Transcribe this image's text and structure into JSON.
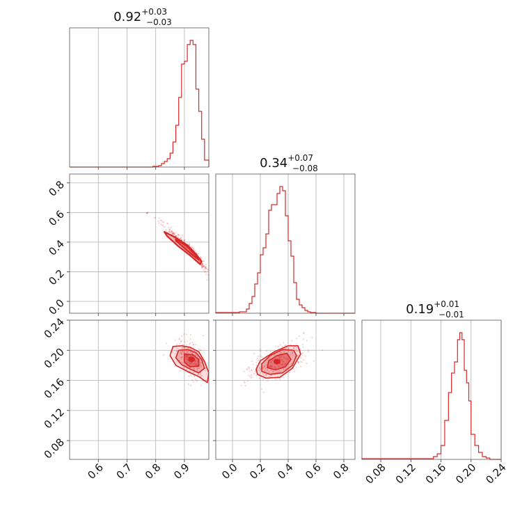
{
  "figure": {
    "type": "corner",
    "color": "#d62728"
  },
  "chart_data": [
    {
      "type": "histogram",
      "panel": "diag-0",
      "title": {
        "value": "0.92",
        "plus": "+0.03",
        "minus": "−0.03"
      },
      "xlim": [
        0.5,
        0.985
      ],
      "xticks": [
        0.6,
        0.7,
        0.8,
        0.9
      ],
      "xticklabels": [
        "0.6",
        "0.7",
        "0.8",
        "0.9"
      ],
      "bin_edges": [
        0.5,
        0.79,
        0.81,
        0.82,
        0.83,
        0.84,
        0.85,
        0.86,
        0.87,
        0.88,
        0.89,
        0.9,
        0.91,
        0.92,
        0.93,
        0.94,
        0.95,
        0.96,
        0.97,
        0.985
      ],
      "counts": [
        0,
        0.005,
        0.01,
        0.025,
        0.04,
        0.06,
        0.1,
        0.18,
        0.3,
        0.5,
        0.74,
        0.76,
        0.88,
        0.91,
        0.88,
        0.56,
        0.4,
        0.2,
        0.05
      ]
    },
    {
      "type": "histogram",
      "panel": "diag-1",
      "title": {
        "value": "0.34",
        "plus": "+0.07",
        "minus": "−0.08"
      },
      "xlim": [
        -0.12,
        0.88
      ],
      "xticks": [
        0.0,
        0.2,
        0.4,
        0.6,
        0.8
      ],
      "xticklabels": [
        "0.0",
        "0.2",
        "0.4",
        "0.6",
        "0.8"
      ],
      "bin_edges": [
        -0.12,
        0.05,
        0.1,
        0.12,
        0.14,
        0.16,
        0.18,
        0.2,
        0.22,
        0.24,
        0.26,
        0.28,
        0.3,
        0.32,
        0.34,
        0.36,
        0.38,
        0.4,
        0.42,
        0.44,
        0.46,
        0.48,
        0.5,
        0.52,
        0.54,
        0.56,
        0.6,
        0.88
      ],
      "counts": [
        0.005,
        0.01,
        0.03,
        0.07,
        0.12,
        0.21,
        0.29,
        0.42,
        0.47,
        0.57,
        0.74,
        0.78,
        0.78,
        0.86,
        0.91,
        0.88,
        0.7,
        0.52,
        0.41,
        0.22,
        0.1,
        0.06,
        0.04,
        0.02,
        0.01,
        0.005,
        0
      ]
    },
    {
      "type": "histogram",
      "panel": "diag-2",
      "title": {
        "value": "0.19",
        "plus": "+0.01",
        "minus": "−0.01"
      },
      "xlim": [
        0.055,
        0.24
      ],
      "xticks": [
        0.08,
        0.12,
        0.16,
        0.2,
        0.24
      ],
      "xticklabels": [
        "0.08",
        "0.12",
        "0.16",
        "0.20",
        "0.24"
      ],
      "bin_edges": [
        0.055,
        0.15,
        0.155,
        0.16,
        0.165,
        0.17,
        0.174,
        0.178,
        0.182,
        0.185,
        0.188,
        0.191,
        0.194,
        0.197,
        0.2,
        0.205,
        0.21,
        0.215,
        0.22,
        0.225,
        0.24
      ],
      "counts": [
        0.005,
        0.02,
        0.04,
        0.1,
        0.28,
        0.48,
        0.62,
        0.7,
        0.86,
        0.91,
        0.86,
        0.64,
        0.55,
        0.42,
        0.18,
        0.1,
        0.05,
        0.02,
        0.01,
        0
      ]
    },
    {
      "type": "scatter",
      "panel": "lower-1-0",
      "xlim": [
        0.5,
        0.985
      ],
      "ylim": [
        -0.08,
        0.86
      ],
      "xticks": [
        0.6,
        0.7,
        0.8,
        0.9
      ],
      "yticks": [
        0.0,
        0.2,
        0.4,
        0.6,
        0.8
      ],
      "yticklabels": [
        "0.0",
        "0.2",
        "0.4",
        "0.6",
        "0.8"
      ],
      "trend": {
        "x": [
          0.77,
          0.82,
          0.86,
          0.9,
          0.94,
          0.97,
          0.985
        ],
        "y": [
          0.6,
          0.53,
          0.46,
          0.39,
          0.31,
          0.23,
          0.16
        ]
      },
      "contours": [
        {
          "x": [
            0.83,
            0.87,
            0.91,
            0.94,
            0.96,
            0.955,
            0.92,
            0.88,
            0.84
          ],
          "y": [
            0.47,
            0.43,
            0.38,
            0.32,
            0.27,
            0.25,
            0.31,
            0.37,
            0.44
          ]
        },
        {
          "x": [
            0.87,
            0.91,
            0.94,
            0.95,
            0.93,
            0.9,
            0.87
          ],
          "y": [
            0.42,
            0.37,
            0.31,
            0.28,
            0.31,
            0.36,
            0.41
          ]
        }
      ]
    },
    {
      "type": "scatter",
      "panel": "lower-2-0",
      "xlim": [
        0.5,
        0.985
      ],
      "ylim": [
        0.055,
        0.24
      ],
      "xticks": [
        0.6,
        0.7,
        0.8,
        0.9
      ],
      "xticklabels": [
        "0.6",
        "0.7",
        "0.8",
        "0.9"
      ],
      "yticks": [
        0.08,
        0.12,
        0.16,
        0.2,
        0.24
      ],
      "yticklabels": [
        "0.08",
        "0.12",
        "0.16",
        "0.20",
        "0.24"
      ],
      "center": [
        0.925,
        0.188
      ],
      "contours": [
        {
          "x": [
            0.86,
            0.89,
            0.92,
            0.95,
            0.97,
            0.985,
            0.98,
            0.95,
            0.91,
            0.87,
            0.85,
            0.86
          ],
          "y": [
            0.205,
            0.206,
            0.204,
            0.198,
            0.185,
            0.17,
            0.157,
            0.165,
            0.172,
            0.18,
            0.193,
            0.205
          ]
        },
        {
          "x": [
            0.88,
            0.91,
            0.94,
            0.96,
            0.97,
            0.95,
            0.92,
            0.89,
            0.87,
            0.88
          ],
          "y": [
            0.2,
            0.201,
            0.197,
            0.188,
            0.176,
            0.17,
            0.175,
            0.181,
            0.19,
            0.2
          ]
        },
        {
          "x": [
            0.9,
            0.93,
            0.95,
            0.95,
            0.92,
            0.9,
            0.9
          ],
          "y": [
            0.195,
            0.194,
            0.188,
            0.179,
            0.178,
            0.184,
            0.195
          ]
        }
      ]
    },
    {
      "type": "scatter",
      "panel": "lower-2-1",
      "xlim": [
        -0.12,
        0.88
      ],
      "ylim": [
        0.055,
        0.24
      ],
      "xticks": [
        0.0,
        0.2,
        0.4,
        0.6,
        0.8
      ],
      "xticklabels": [
        "0.0",
        "0.2",
        "0.4",
        "0.6",
        "0.8"
      ],
      "yticks": [
        0.08,
        0.12,
        0.16,
        0.2,
        0.24
      ],
      "center": [
        0.32,
        0.185
      ],
      "contours": [
        {
          "x": [
            0.18,
            0.24,
            0.34,
            0.43,
            0.49,
            0.47,
            0.4,
            0.3,
            0.2,
            0.17,
            0.18
          ],
          "y": [
            0.168,
            0.163,
            0.164,
            0.176,
            0.195,
            0.206,
            0.206,
            0.198,
            0.186,
            0.175,
            0.168
          ]
        },
        {
          "x": [
            0.21,
            0.27,
            0.36,
            0.43,
            0.46,
            0.44,
            0.36,
            0.27,
            0.21,
            0.21
          ],
          "y": [
            0.172,
            0.168,
            0.17,
            0.18,
            0.193,
            0.2,
            0.201,
            0.193,
            0.182,
            0.172
          ]
        },
        {
          "x": [
            0.25,
            0.31,
            0.38,
            0.42,
            0.39,
            0.32,
            0.26,
            0.25
          ],
          "y": [
            0.177,
            0.174,
            0.178,
            0.188,
            0.196,
            0.193,
            0.186,
            0.177
          ]
        }
      ]
    }
  ]
}
